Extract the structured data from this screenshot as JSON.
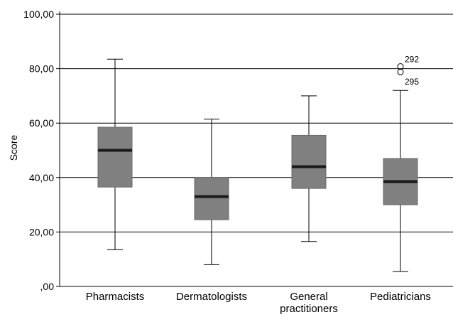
{
  "chart_data": {
    "type": "boxplot",
    "ylabel": "Score",
    "ylim": [
      0,
      100
    ],
    "yticks": [
      0,
      20,
      40,
      60,
      80,
      100
    ],
    "ytick_labels": [
      ",00",
      "20,00",
      "40,00",
      "60,00",
      "80,00",
      "100,00"
    ],
    "grid": "horizontal",
    "box_color": "#808080",
    "median_color": "#1a1a1a",
    "categories": [
      {
        "label_lines": [
          "Pharmacists"
        ],
        "min": 13.5,
        "q1": 36.5,
        "median": 50,
        "q3": 58.5,
        "max": 83.5,
        "outliers": []
      },
      {
        "label_lines": [
          "Dermatologists"
        ],
        "min": 8,
        "q1": 24.5,
        "median": 33,
        "q3": 40,
        "max": 61.5,
        "outliers": []
      },
      {
        "label_lines": [
          "General",
          "practitioners"
        ],
        "min": 16.5,
        "q1": 36,
        "median": 44,
        "q3": 55.5,
        "max": 70,
        "outliers": []
      },
      {
        "label_lines": [
          "Pediatricians"
        ],
        "min": 5.5,
        "q1": 30,
        "median": 38.5,
        "q3": 47,
        "max": 72,
        "outliers": [
          {
            "value": 80.8,
            "label": "292"
          },
          {
            "value": 78.8,
            "label": "295"
          }
        ]
      }
    ]
  }
}
